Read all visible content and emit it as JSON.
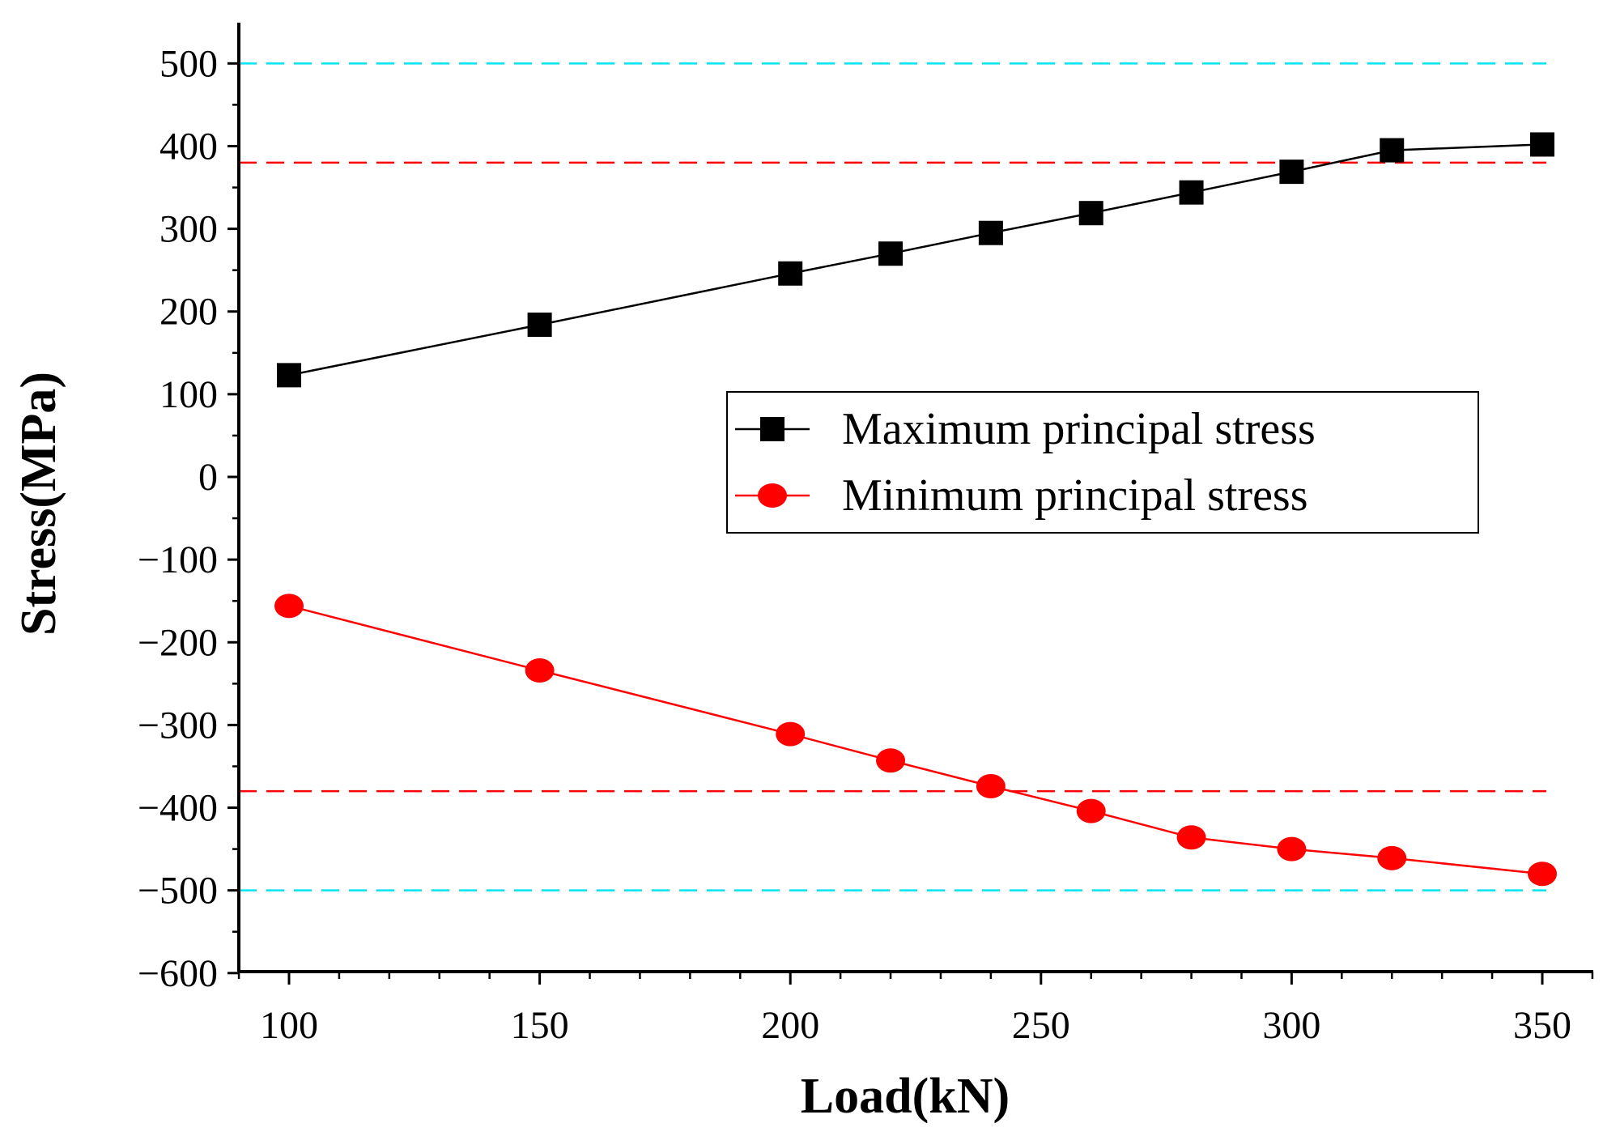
{
  "chart_data": {
    "type": "line",
    "title": "",
    "xlabel": "Load(kN)",
    "ylabel": "Stress(MPa)",
    "xlim": [
      90,
      360
    ],
    "ylim": [
      -600,
      550
    ],
    "xticks": [
      100,
      150,
      200,
      250,
      300,
      350
    ],
    "xtick_labels": [
      "100",
      "150",
      "200",
      "250",
      "300",
      "350"
    ],
    "yticks": [
      500,
      400,
      300,
      200,
      100,
      0,
      -100,
      -200,
      -300,
      -400,
      -500,
      -600
    ],
    "ytick_labels": [
      "500",
      "400",
      "300",
      "200",
      "100",
      "0",
      "−100",
      "−200",
      "−300",
      "−400",
      "−500",
      "−600"
    ],
    "legend_position": "center-right",
    "reference_lines": [
      {
        "y": 500,
        "color": "#00e5f0",
        "style": "dashed"
      },
      {
        "y": 380,
        "color": "#ff0000",
        "style": "dashed"
      },
      {
        "y": -380,
        "color": "#ff0000",
        "style": "dashed"
      },
      {
        "y": -500,
        "color": "#00e5f0",
        "style": "dashed"
      }
    ],
    "series": [
      {
        "name": "Maximum principal stress",
        "color": "#000000",
        "marker": "square",
        "x": [
          100,
          150,
          200,
          220,
          240,
          260,
          280,
          300,
          320,
          350
        ],
        "values": [
          123,
          184,
          246,
          270,
          295,
          319,
          344,
          369,
          395,
          402
        ]
      },
      {
        "name": "Minimum principal stress",
        "color": "#ff0000",
        "marker": "circle",
        "x": [
          100,
          150,
          200,
          220,
          240,
          260,
          280,
          300,
          320,
          350
        ],
        "values": [
          -156,
          -234,
          -311,
          -343,
          -374,
          -404,
          -436,
          -450,
          -461,
          -480
        ]
      }
    ]
  }
}
